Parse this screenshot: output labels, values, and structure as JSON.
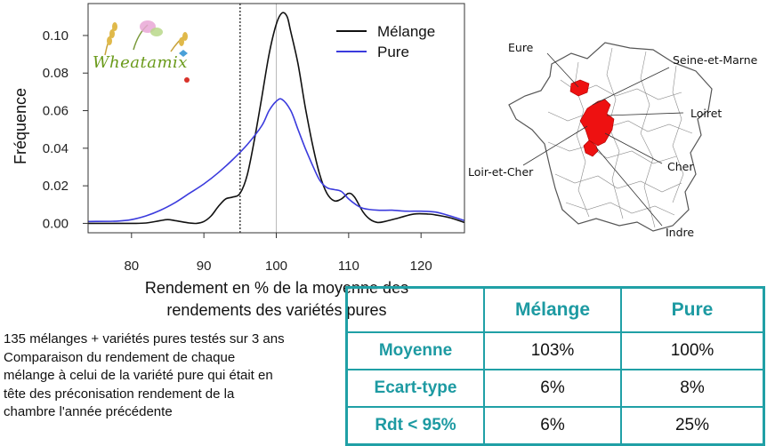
{
  "chart_data": {
    "type": "line",
    "xlabel_lines": [
      "Rendement en % de la moyenne des",
      "rendements des variétés pures"
    ],
    "ylabel": "Fréquence",
    "xlim": [
      74,
      126
    ],
    "ylim": [
      -0.005,
      0.117
    ],
    "xticks": [
      80,
      90,
      100,
      110,
      120
    ],
    "yticks": [
      0.0,
      0.02,
      0.04,
      0.06,
      0.08,
      0.1
    ],
    "ytick_labels": [
      "0.00",
      "0.02",
      "0.04",
      "0.06",
      "0.08",
      "0.10"
    ],
    "vlines": [
      {
        "x": 95,
        "style": "dotted",
        "color": "#333333"
      },
      {
        "x": 100,
        "style": "solid",
        "color": "#bbbbbb"
      }
    ],
    "legend_position": "top-right",
    "series": [
      {
        "name": "Mélange",
        "color": "#111111",
        "points": [
          [
            74,
            0
          ],
          [
            80,
            0
          ],
          [
            82,
            0.0002
          ],
          [
            84,
            0.0015
          ],
          [
            85,
            0.002
          ],
          [
            86,
            0.0015
          ],
          [
            88,
            0.0002
          ],
          [
            89,
            0.0
          ],
          [
            90,
            0.001
          ],
          [
            91,
            0.004
          ],
          [
            92,
            0.009
          ],
          [
            93,
            0.013
          ],
          [
            94,
            0.014
          ],
          [
            95,
            0.016
          ],
          [
            96,
            0.026
          ],
          [
            97,
            0.045
          ],
          [
            98,
            0.067
          ],
          [
            99,
            0.09
          ],
          [
            100,
            0.106
          ],
          [
            100.8,
            0.112
          ],
          [
            101.5,
            0.11
          ],
          [
            102,
            0.102
          ],
          [
            103,
            0.085
          ],
          [
            104,
            0.062
          ],
          [
            105,
            0.042
          ],
          [
            106,
            0.026
          ],
          [
            107,
            0.016
          ],
          [
            108,
            0.012
          ],
          [
            109,
            0.013
          ],
          [
            110,
            0.016
          ],
          [
            110.8,
            0.014
          ],
          [
            112,
            0.006
          ],
          [
            113,
            0.002
          ],
          [
            114,
            0.0005
          ],
          [
            115,
            0.001
          ],
          [
            117,
            0.003
          ],
          [
            119,
            0.005
          ],
          [
            121,
            0.005
          ],
          [
            122,
            0.0045
          ],
          [
            124,
            0.003
          ],
          [
            126,
            0.0005
          ]
        ]
      },
      {
        "name": "Pure",
        "color": "#3b3bdd",
        "points": [
          [
            74,
            0.001
          ],
          [
            78,
            0.0012
          ],
          [
            80,
            0.002
          ],
          [
            82,
            0.004
          ],
          [
            84,
            0.007
          ],
          [
            86,
            0.011
          ],
          [
            88,
            0.016
          ],
          [
            90,
            0.021
          ],
          [
            92,
            0.027
          ],
          [
            94,
            0.034
          ],
          [
            96,
            0.042
          ],
          [
            98,
            0.052
          ],
          [
            99,
            0.06
          ],
          [
            100,
            0.065
          ],
          [
            100.8,
            0.066
          ],
          [
            102,
            0.06
          ],
          [
            103,
            0.05
          ],
          [
            104,
            0.04
          ],
          [
            105,
            0.031
          ],
          [
            106,
            0.023
          ],
          [
            107,
            0.019
          ],
          [
            108,
            0.018
          ],
          [
            109,
            0.017
          ],
          [
            110,
            0.013
          ],
          [
            111,
            0.01
          ],
          [
            112,
            0.008
          ],
          [
            114,
            0.007
          ],
          [
            116,
            0.007
          ],
          [
            118,
            0.0065
          ],
          [
            120,
            0.0065
          ],
          [
            122,
            0.006
          ],
          [
            124,
            0.004
          ],
          [
            126,
            0.0015
          ]
        ]
      }
    ]
  },
  "map": {
    "labels": {
      "eure": "Eure",
      "seine_et_marne": "Seine-et-Marne",
      "loiret": "Loiret",
      "loir_et_cher": "Loir-et-Cher",
      "cher": "Cher",
      "indre": "Indre"
    },
    "highlight_color": "#ee1111"
  },
  "logo": {
    "text": "Wheatamix"
  },
  "description": {
    "lines": [
      "135 mélanges + variétés pures testés sur 3 ans",
      "Comparaison du rendement de chaque",
      "mélange à celui de la variété pure qui était en",
      "tête des préconisation rendement de la",
      "chambre l'année précédente"
    ]
  },
  "table": {
    "columns": [
      "Mélange",
      "Pure"
    ],
    "rows": [
      {
        "label": "Moyenne",
        "values": [
          "103%",
          "100%"
        ]
      },
      {
        "label": "Ecart-type",
        "values": [
          "6%",
          "8%"
        ]
      },
      {
        "label": "Rdt < 95%",
        "values": [
          "6%",
          "25%"
        ]
      }
    ],
    "accent_color": "#1d9aa2"
  }
}
